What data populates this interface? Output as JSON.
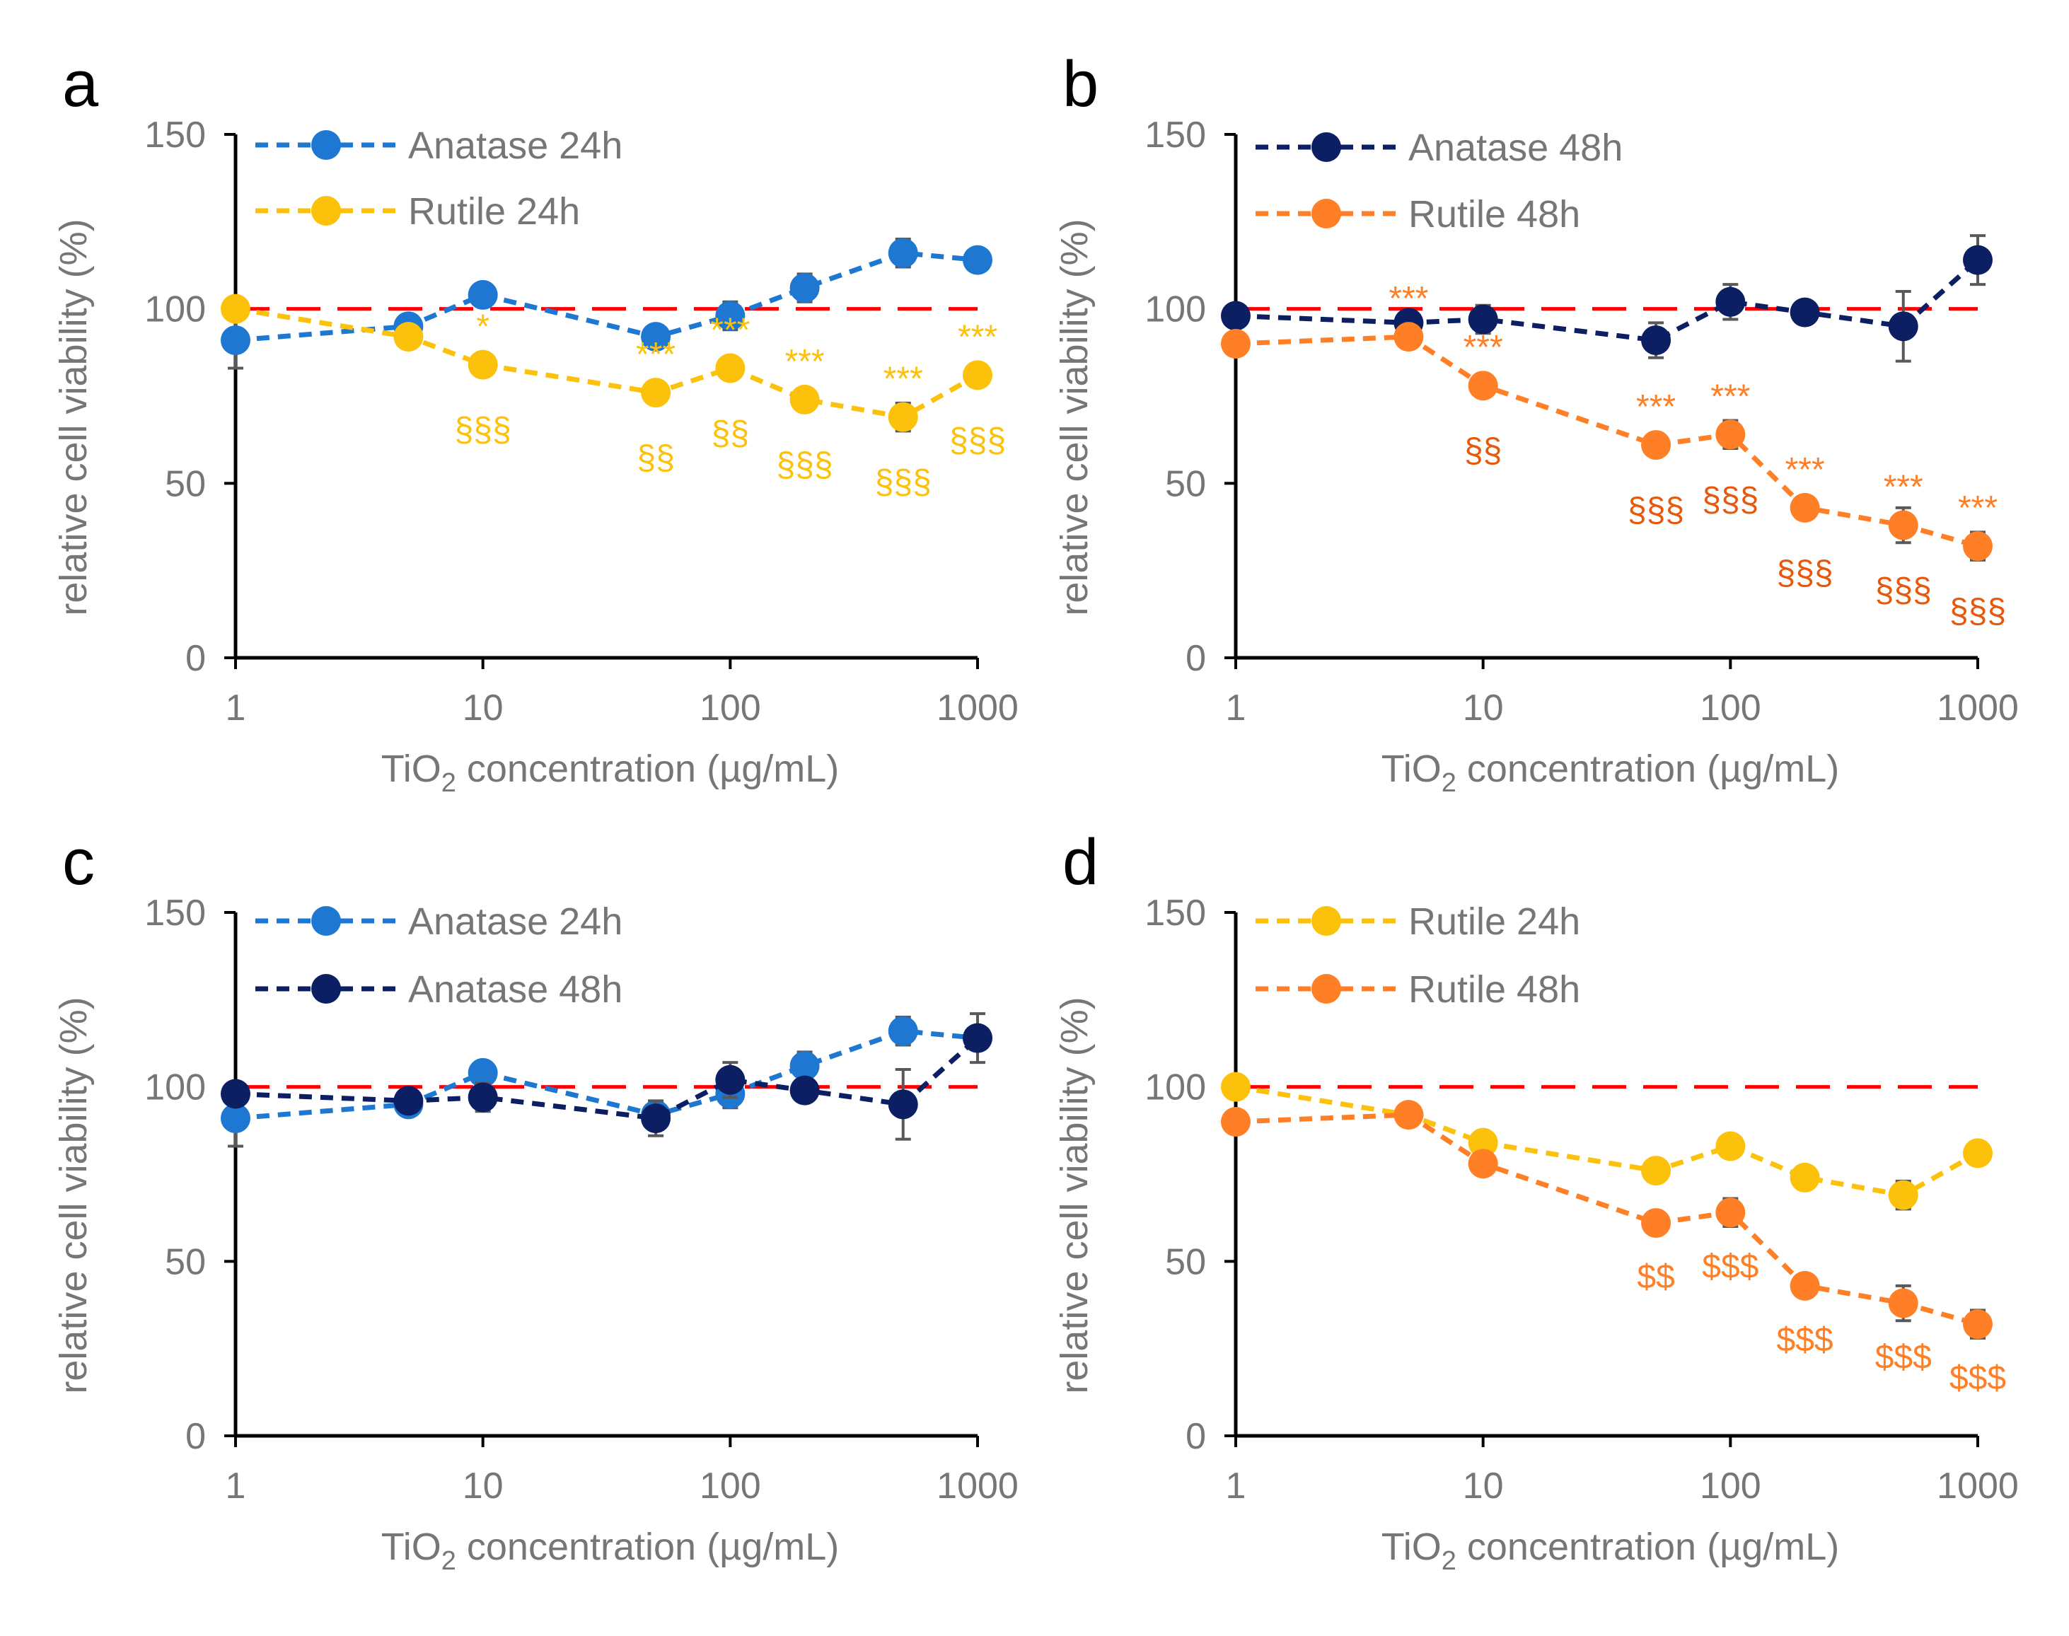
{
  "chart_data": [
    {
      "panel_label": "a",
      "type": "line",
      "xscale": "log",
      "xlim": [
        1,
        1000
      ],
      "ylim": [
        0,
        150
      ],
      "x_ticks": [
        "1",
        "10",
        "100",
        "1000"
      ],
      "y_ticks": [
        "0",
        "50",
        "100",
        "150"
      ],
      "xlabel_prefix": "TiO",
      "xlabel_sub": "2",
      "xlabel_suffix": " concentration (µg/mL)",
      "ylabel": "relative cell viability (%)",
      "reference_line": {
        "y": 100,
        "color": "#ff0000"
      },
      "legend_position": "top-left",
      "series": [
        {
          "name": "Anatase 24h",
          "color": "#1e78d2",
          "x": [
            1,
            5,
            10,
            50,
            100,
            200,
            500,
            1000
          ],
          "y": [
            91,
            95,
            104,
            92,
            98,
            106,
            116,
            114
          ],
          "err": [
            8,
            3,
            2,
            3,
            4,
            4,
            4,
            2
          ]
        },
        {
          "name": "Rutile 24h",
          "color": "#fcc10a",
          "x": [
            1,
            5,
            10,
            50,
            100,
            200,
            500,
            1000
          ],
          "y": [
            100,
            92,
            84,
            76,
            83,
            74,
            69,
            81
          ],
          "err": [
            2,
            3,
            2,
            2,
            2,
            2,
            4,
            2
          ]
        }
      ],
      "annotations": [
        {
          "x": 10,
          "text": "*",
          "row": "top",
          "color": "#fcc10a"
        },
        {
          "x": 10,
          "text": "§§§",
          "row": "bottom",
          "color": "#fcc10a"
        },
        {
          "x": 50,
          "text": "***",
          "row": "top",
          "color": "#fcc10a"
        },
        {
          "x": 50,
          "text": "§§",
          "row": "bottom",
          "color": "#fcc10a"
        },
        {
          "x": 100,
          "text": "***",
          "row": "top",
          "color": "#fcc10a"
        },
        {
          "x": 100,
          "text": "§§",
          "row": "bottom",
          "color": "#fcc10a"
        },
        {
          "x": 200,
          "text": "***",
          "row": "top",
          "color": "#fcc10a"
        },
        {
          "x": 200,
          "text": "§§§",
          "row": "bottom",
          "color": "#fcc10a"
        },
        {
          "x": 500,
          "text": "***",
          "row": "top",
          "color": "#fcc10a"
        },
        {
          "x": 500,
          "text": "§§§",
          "row": "bottom",
          "color": "#fcc10a"
        },
        {
          "x": 1000,
          "text": "***",
          "row": "top",
          "color": "#fcc10a"
        },
        {
          "x": 1000,
          "text": "§§§",
          "row": "bottom",
          "color": "#fcc10a"
        }
      ]
    },
    {
      "panel_label": "b",
      "type": "line",
      "xscale": "log",
      "xlim": [
        1,
        1000
      ],
      "ylim": [
        0,
        150
      ],
      "x_ticks": [
        "1",
        "10",
        "100",
        "1000"
      ],
      "y_ticks": [
        "0",
        "50",
        "100",
        "150"
      ],
      "xlabel_prefix": "TiO",
      "xlabel_sub": "2",
      "xlabel_suffix": " concentration (µg/mL)",
      "ylabel": "relative cell viability (%)",
      "reference_line": {
        "y": 100,
        "color": "#ff0000"
      },
      "legend_position": "top-left",
      "series": [
        {
          "name": "Anatase 48h",
          "color": "#0d1f63",
          "x": [
            1,
            5,
            10,
            50,
            100,
            200,
            500,
            1000
          ],
          "y": [
            98,
            96,
            97,
            91,
            102,
            99,
            95,
            114
          ],
          "err": [
            2,
            2,
            4,
            5,
            5,
            3,
            10,
            7
          ]
        },
        {
          "name": "Rutile 48h",
          "color": "#ff7f27",
          "x": [
            1,
            5,
            10,
            50,
            100,
            200,
            500,
            1000
          ],
          "y": [
            90,
            92,
            78,
            61,
            64,
            43,
            38,
            32
          ],
          "err": [
            2,
            2,
            2,
            3,
            4,
            3,
            5,
            4
          ]
        }
      ],
      "annotations": [
        {
          "x": 5,
          "text": "***",
          "row": "top",
          "color": "#ff7f27"
        },
        {
          "x": 10,
          "text": "***",
          "row": "top",
          "color": "#ff7f27"
        },
        {
          "x": 10,
          "text": "§§",
          "row": "bottom",
          "color": "#e8580c"
        },
        {
          "x": 50,
          "text": "***",
          "row": "top",
          "color": "#ff7f27"
        },
        {
          "x": 50,
          "text": "§§§",
          "row": "bottom",
          "color": "#e8580c"
        },
        {
          "x": 100,
          "text": "***",
          "row": "top",
          "color": "#ff7f27"
        },
        {
          "x": 100,
          "text": "§§§",
          "row": "bottom",
          "color": "#e8580c"
        },
        {
          "x": 200,
          "text": "***",
          "row": "top",
          "color": "#ff7f27"
        },
        {
          "x": 200,
          "text": "§§§",
          "row": "bottom",
          "color": "#e8580c"
        },
        {
          "x": 500,
          "text": "***",
          "row": "top",
          "color": "#ff7f27"
        },
        {
          "x": 500,
          "text": "§§§",
          "row": "bottom",
          "color": "#e8580c"
        },
        {
          "x": 1000,
          "text": "***",
          "row": "top",
          "color": "#ff7f27"
        },
        {
          "x": 1000,
          "text": "§§§",
          "row": "bottom",
          "color": "#e8580c"
        }
      ]
    },
    {
      "panel_label": "c",
      "type": "line",
      "xscale": "log",
      "xlim": [
        1,
        1000
      ],
      "ylim": [
        0,
        150
      ],
      "x_ticks": [
        "1",
        "10",
        "100",
        "1000"
      ],
      "y_ticks": [
        "0",
        "50",
        "100",
        "150"
      ],
      "xlabel_prefix": "TiO",
      "xlabel_sub": "2",
      "xlabel_suffix": " concentration (µg/mL)",
      "ylabel": "relative cell viability (%)",
      "reference_line": {
        "y": 100,
        "color": "#ff0000"
      },
      "legend_position": "top-left",
      "series": [
        {
          "name": "Anatase 24h",
          "color": "#1e78d2",
          "x": [
            1,
            5,
            10,
            50,
            100,
            200,
            500,
            1000
          ],
          "y": [
            91,
            95,
            104,
            92,
            98,
            106,
            116,
            114
          ],
          "err": [
            8,
            3,
            2,
            3,
            4,
            4,
            4,
            2
          ]
        },
        {
          "name": "Anatase 48h",
          "color": "#0d1f63",
          "x": [
            1,
            5,
            10,
            50,
            100,
            200,
            500,
            1000
          ],
          "y": [
            98,
            96,
            97,
            91,
            102,
            99,
            95,
            114
          ],
          "err": [
            2,
            2,
            4,
            5,
            5,
            3,
            10,
            7
          ]
        }
      ],
      "annotations": []
    },
    {
      "panel_label": "d",
      "type": "line",
      "xscale": "log",
      "xlim": [
        1,
        1000
      ],
      "ylim": [
        0,
        150
      ],
      "x_ticks": [
        "1",
        "10",
        "100",
        "1000"
      ],
      "y_ticks": [
        "0",
        "50",
        "100",
        "150"
      ],
      "xlabel_prefix": "TiO",
      "xlabel_sub": "2",
      "xlabel_suffix": " concentration (µg/mL)",
      "ylabel": "relative cell viability (%)",
      "reference_line": {
        "y": 100,
        "color": "#ff0000"
      },
      "legend_position": "top-left",
      "series": [
        {
          "name": "Rutile 24h",
          "color": "#fcc10a",
          "x": [
            1,
            5,
            10,
            50,
            100,
            200,
            500,
            1000
          ],
          "y": [
            100,
            92,
            84,
            76,
            83,
            74,
            69,
            81
          ],
          "err": [
            2,
            3,
            2,
            2,
            2,
            2,
            4,
            2
          ]
        },
        {
          "name": "Rutile 48h",
          "color": "#ff7f27",
          "x": [
            1,
            5,
            10,
            50,
            100,
            200,
            500,
            1000
          ],
          "y": [
            90,
            92,
            78,
            61,
            64,
            43,
            38,
            32
          ],
          "err": [
            2,
            2,
            2,
            3,
            4,
            3,
            5,
            4
          ]
        }
      ],
      "annotations": [
        {
          "x": 50,
          "text": "$$",
          "row": "bottom",
          "color": "#ff7f27"
        },
        {
          "x": 100,
          "text": "$$$",
          "row": "bottom",
          "color": "#ff7f27"
        },
        {
          "x": 200,
          "text": "$$$",
          "row": "bottom",
          "color": "#ff7f27"
        },
        {
          "x": 500,
          "text": "$$$",
          "row": "bottom",
          "color": "#ff7f27"
        },
        {
          "x": 1000,
          "text": "$$$",
          "row": "bottom",
          "color": "#ff7f27"
        }
      ]
    }
  ]
}
